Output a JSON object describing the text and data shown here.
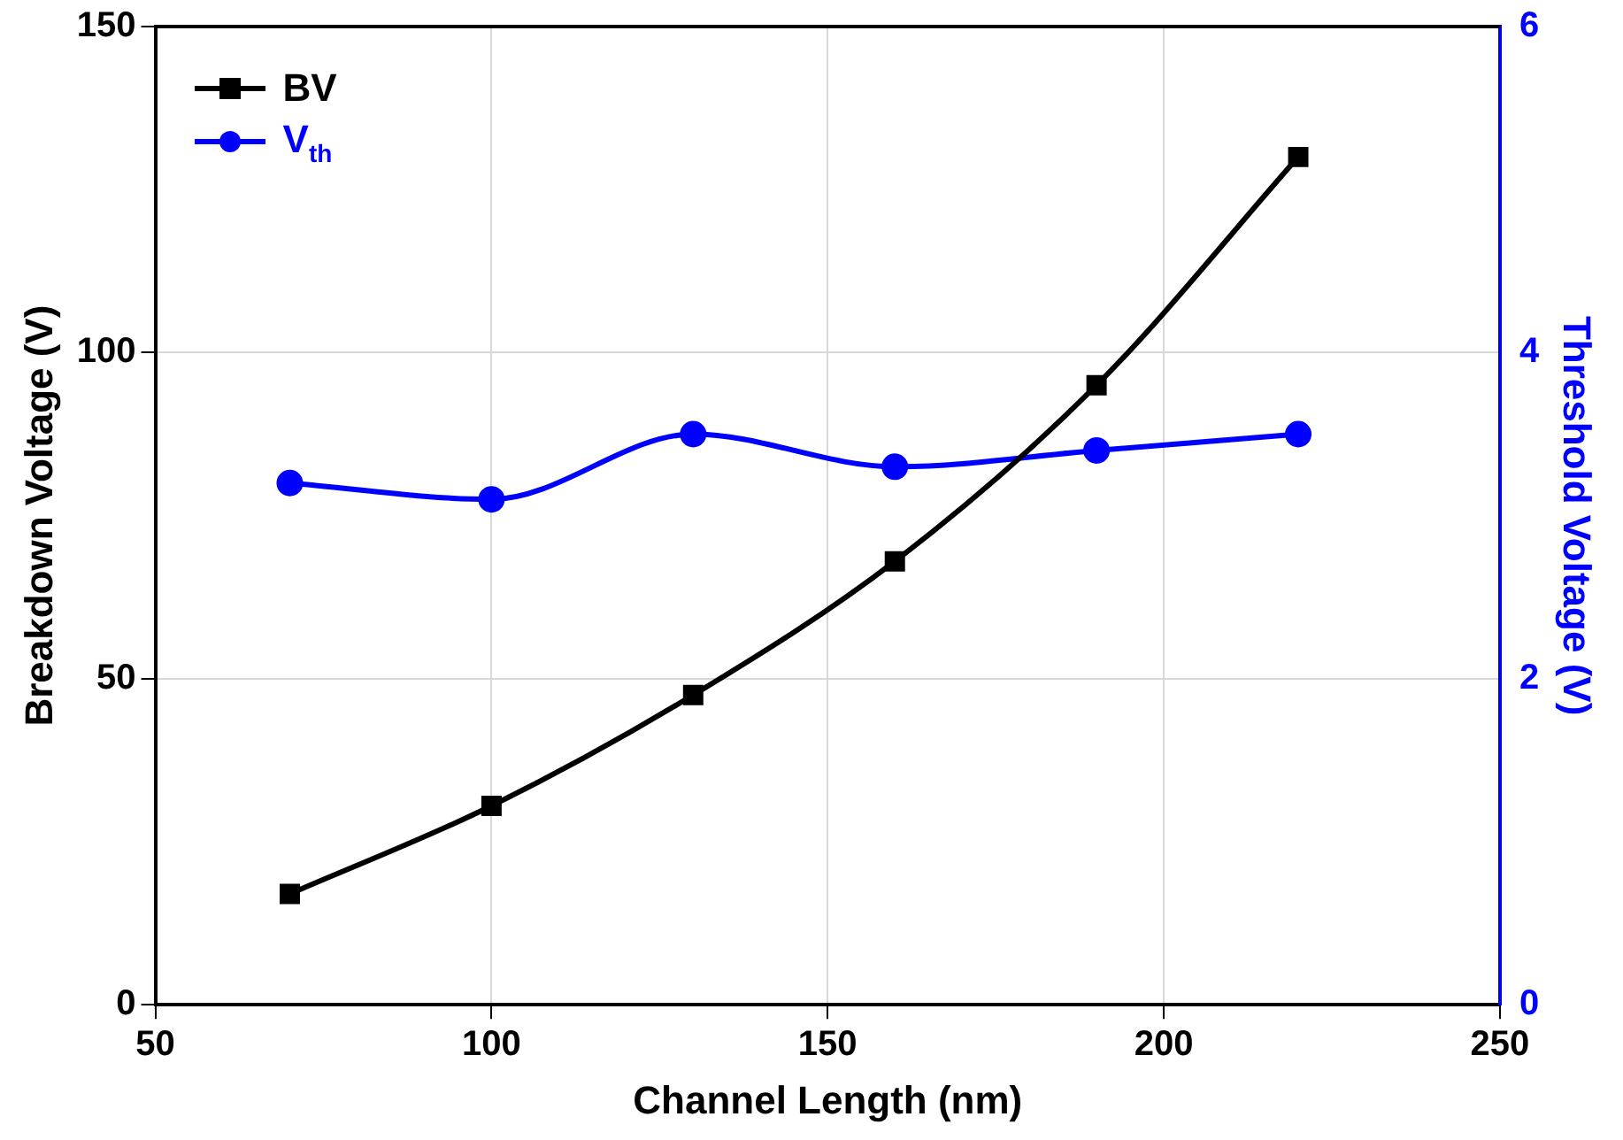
{
  "chart_data": {
    "type": "line",
    "xlabel": "Channel Length (nm)",
    "ylabel": "Breakdown Voltage (V)",
    "y2label": "Threshold Voltage (V)",
    "x": [
      70,
      100,
      130,
      160,
      190,
      220
    ],
    "series": [
      {
        "name": "BV",
        "color": "#000000",
        "values": [
          17,
          30.5,
          47.5,
          68,
          95,
          130
        ],
        "marker": "square"
      },
      {
        "name": "V$_{th}$",
        "color": "#0000ff",
        "values": [
          3.2,
          3.1,
          3.5,
          3.3,
          3.4,
          3.5
        ],
        "marker": "circle",
        "axis": "y2"
      }
    ],
    "xlim": [
      50,
      250
    ],
    "xticks": [
      50,
      100,
      150,
      200,
      250
    ],
    "ylim": [
      0,
      150
    ],
    "yticks": [
      0,
      50,
      100,
      150
    ],
    "y2lim": [
      0,
      6
    ],
    "y2ticks": [
      0,
      2,
      4,
      6
    ],
    "grid": true,
    "legend": "top left",
    "line_style": "solid"
  }
}
